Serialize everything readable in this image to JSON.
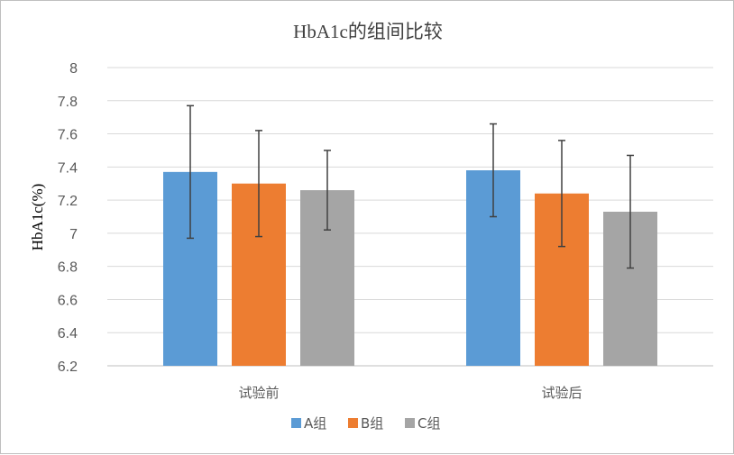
{
  "chart_data": {
    "type": "bar",
    "title": "HbA1c的组间比较",
    "xlabel": "",
    "ylabel": "HbA1c(%)",
    "ylim": [
      6.2,
      8
    ],
    "yticks": [
      "6.2",
      "6.4",
      "6.6",
      "6.8",
      "7",
      "7.2",
      "7.4",
      "7.6",
      "7.8",
      "8"
    ],
    "categories": [
      "试验前",
      "试验后"
    ],
    "series": [
      {
        "name": "A组",
        "color": "#5b9bd5",
        "values": [
          7.37,
          7.38
        ],
        "errors": [
          0.4,
          0.28
        ]
      },
      {
        "name": "B组",
        "color": "#ed7d31",
        "values": [
          7.3,
          7.24
        ],
        "errors": [
          0.32,
          0.32
        ]
      },
      {
        "name": "C组",
        "color": "#a5a5a5",
        "values": [
          7.26,
          7.13
        ],
        "errors": [
          0.24,
          0.34
        ]
      }
    ],
    "grid": true,
    "legend": "bottom"
  }
}
